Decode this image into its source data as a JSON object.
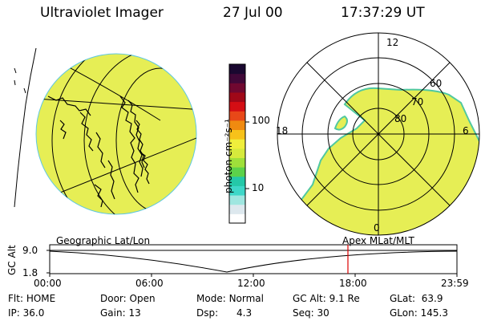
{
  "header": {
    "instrument": "Ultraviolet Imager",
    "date": "27 Jul 00",
    "time": "17:37:29 UT"
  },
  "colorbar": {
    "unit_label": "photon cm⁻²s⁻¹",
    "ticks": [
      "100",
      "10"
    ],
    "colors": [
      "#ffffff",
      "#dde8ee",
      "#9fe6e0",
      "#3ed7c8",
      "#24c8a8",
      "#5cd24a",
      "#9fe03a",
      "#d6ea3c",
      "#f0ee3c",
      "#f7c21a",
      "#f08a10",
      "#e84818",
      "#d40e14",
      "#a00818",
      "#700830",
      "#400838",
      "#1a0830"
    ]
  },
  "left_panel": {
    "label": "Geographic Lat/Lon",
    "fill_color": "#e6ee55"
  },
  "right_panel": {
    "label": "Apex MLat/MLT",
    "mlt_labels": [
      "12",
      "18",
      "6",
      "0"
    ],
    "mlat_labels": [
      "60",
      "70",
      "80"
    ],
    "fill_color": "#e6ee55"
  },
  "altitude_plot": {
    "ylabel": "GC Alt",
    "y_ticks": [
      "9.0",
      "1.8"
    ],
    "x_ticks": [
      "00:00",
      "06:00",
      "12:00",
      "18:00",
      "23:59"
    ],
    "marker_color": "#dd0000"
  },
  "status": {
    "flt_label": "Flt:",
    "flt_value": "HOME",
    "ip_label": "IP:",
    "ip_value": "36.0",
    "door_label": "Door:",
    "door_value": "Open",
    "gain_label": "Gain:",
    "gain_value": "13",
    "mode_label": "Mode:",
    "mode_value": "Normal",
    "dsp_label": "Dsp:",
    "dsp_value": "4.3",
    "gcalt_label": "GC Alt:",
    "gcalt_value": "9.1 Re",
    "seq_label": "Seq:",
    "seq_value": "30",
    "glat_label": "GLat:",
    "glat_value": "63.9",
    "glon_label": "GLon:",
    "glon_value": "145.3"
  }
}
